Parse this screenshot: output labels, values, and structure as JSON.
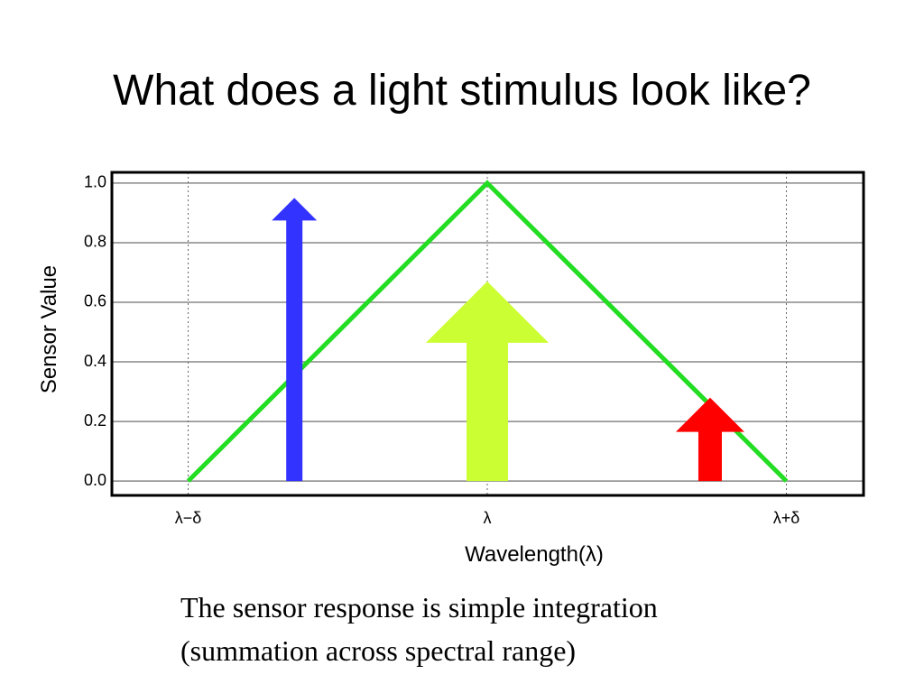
{
  "title": "What does a light stimulus look like?",
  "chart_data": {
    "type": "line",
    "x": [
      -1,
      0,
      1
    ],
    "series": [
      {
        "color": "#22dd22",
        "values": [
          0,
          1,
          0
        ]
      }
    ],
    "arrows": {
      "x": [
        -0.645,
        0,
        0.745
      ],
      "values": [
        0.95,
        0.67,
        0.28
      ],
      "colors": [
        "#3333ff",
        "#ccff33",
        "#ff0000"
      ],
      "widths": [
        18,
        46,
        26
      ],
      "heads": [
        50,
        136,
        76
      ]
    },
    "xlim": [
      -1.255,
      1.258
    ],
    "xticks": [
      {
        "value": -1,
        "label": "λ−δ"
      },
      {
        "value": 0,
        "label": "λ"
      },
      {
        "value": 1,
        "label": "λ+δ"
      }
    ],
    "ylim": [
      -0.048,
      1.036
    ],
    "yticks": [
      {
        "value": 0,
        "label": "0.0"
      },
      {
        "value": 0.2,
        "label": "0.2"
      },
      {
        "value": 0.4,
        "label": "0.4"
      },
      {
        "value": 0.6,
        "label": "0.6"
      },
      {
        "value": 0.8,
        "label": "0.8"
      },
      {
        "value": 1,
        "label": "1.0"
      }
    ],
    "xlabel": "Wavelength(λ)",
    "ylabel": "Sensor Value",
    "grid": true
  },
  "caption": [
    "The sensor response is simple integration",
    "(summation across spectral range)"
  ]
}
